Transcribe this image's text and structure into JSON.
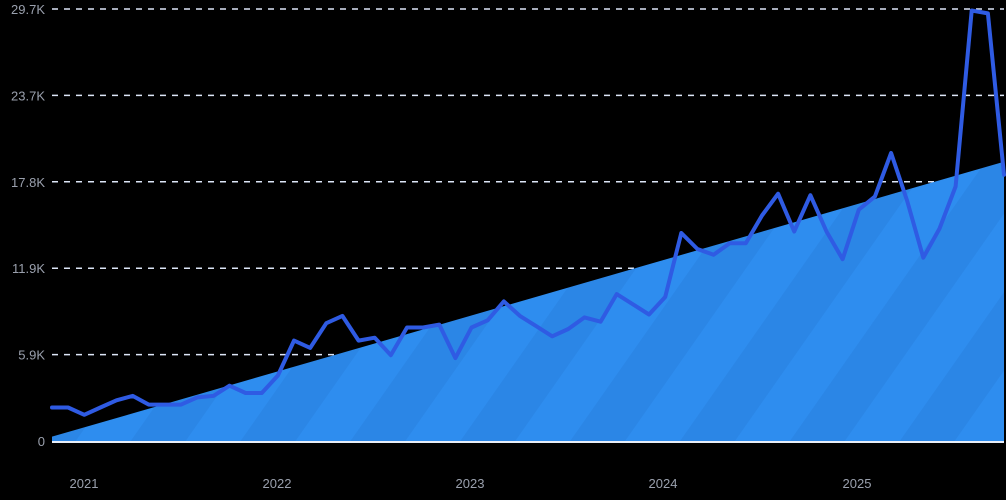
{
  "chart_data": {
    "type": "line",
    "title": "",
    "xlabel": "",
    "ylabel": "",
    "ylim": [
      0,
      29700
    ],
    "yticks": [
      "0",
      "5.9K",
      "11.9K",
      "17.8K",
      "23.7K",
      "29.7K"
    ],
    "ytick_values": [
      0,
      5940,
      11880,
      17820,
      23760,
      29700
    ],
    "xticks": [
      "2021",
      "2022",
      "2023",
      "2024",
      "2025"
    ],
    "grid": true,
    "legend": null,
    "series": [
      {
        "name": "value",
        "type": "line",
        "color": "#2f5be3",
        "x": [
          "2020-12",
          "2021-01",
          "2021-02",
          "2021-03",
          "2021-04",
          "2021-05",
          "2021-06",
          "2021-07",
          "2021-08",
          "2021-09",
          "2021-10",
          "2021-11",
          "2021-12",
          "2022-01",
          "2022-02",
          "2022-03",
          "2022-04",
          "2022-05",
          "2022-06",
          "2022-07",
          "2022-08",
          "2022-09",
          "2022-10",
          "2022-11",
          "2022-12",
          "2023-01",
          "2023-02",
          "2023-03",
          "2023-04",
          "2023-05",
          "2023-06",
          "2023-07",
          "2023-08",
          "2023-09",
          "2023-10",
          "2023-11",
          "2023-12",
          "2024-01",
          "2024-02",
          "2024-03",
          "2024-04",
          "2024-05",
          "2024-06",
          "2024-07",
          "2024-08",
          "2024-09",
          "2024-10",
          "2024-11",
          "2024-12",
          "2025-01",
          "2025-02",
          "2025-03",
          "2025-04",
          "2025-05",
          "2025-06",
          "2025-07",
          "2025-08",
          "2025-09",
          "2025-10",
          "2025-11"
        ],
        "values": [
          2300,
          2300,
          1800,
          2300,
          2800,
          3100,
          2500,
          2500,
          2500,
          3000,
          3100,
          3800,
          3300,
          3300,
          4500,
          6900,
          6400,
          8100,
          8600,
          6900,
          7100,
          5900,
          7800,
          7800,
          8000,
          5700,
          7800,
          8300,
          9600,
          8600,
          7900,
          7200,
          7700,
          8500,
          8200,
          10100,
          9400,
          8700,
          9900,
          14300,
          13200,
          12800,
          13600,
          13600,
          15500,
          17000,
          14400,
          16900,
          14400,
          12500,
          15900,
          16800,
          19800,
          16500,
          12600,
          14600,
          17500,
          29600,
          29400,
          18300
        ]
      },
      {
        "name": "trend",
        "type": "area",
        "color": "#2e8def",
        "start": 300,
        "end": 19200
      }
    ]
  }
}
